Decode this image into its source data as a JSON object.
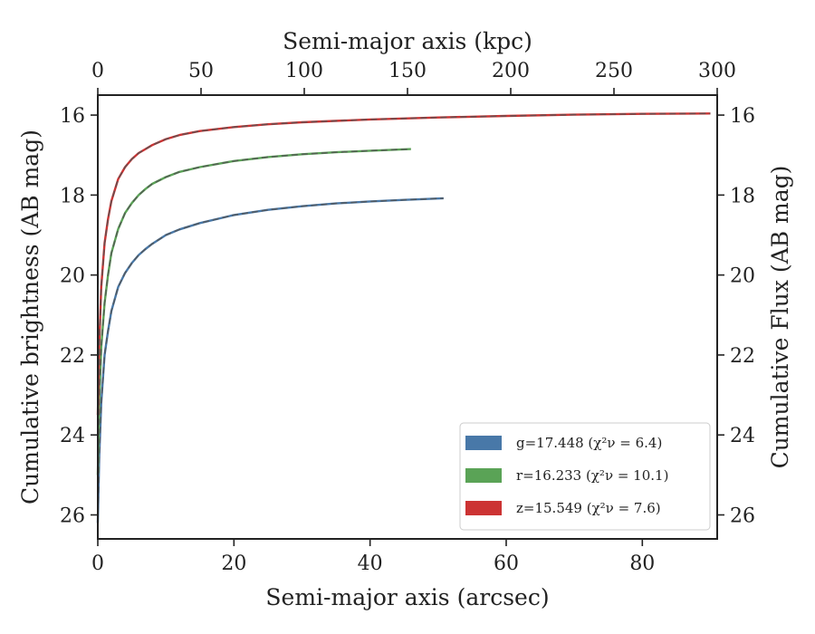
{
  "chart_data": {
    "type": "line",
    "title": "",
    "xlabel": "Semi-major axis (arcsec)",
    "xlabel_top": "Semi-major axis (kpc)",
    "ylabel": "Cumulative brightness (AB mag)",
    "ylabel_right": "Cumulative Flux (AB mag)",
    "xlim": [
      0,
      91
    ],
    "ylim": [
      26.6,
      15.5
    ],
    "y_inverted": true,
    "xlim_top": [
      0,
      300
    ],
    "x_ticks": [
      0,
      20,
      40,
      60,
      80
    ],
    "x_tick_labels": [
      "0",
      "20",
      "40",
      "60",
      "80"
    ],
    "x_top_ticks": [
      0,
      50,
      100,
      150,
      200,
      250,
      300
    ],
    "x_top_tick_labels": [
      "0",
      "50",
      "100",
      "150",
      "200",
      "250",
      "300"
    ],
    "y_ticks": [
      16,
      18,
      20,
      22,
      24,
      26
    ],
    "y_tick_labels": [
      "16",
      "18",
      "20",
      "22",
      "24",
      "26"
    ],
    "y_right_ticks": [
      16,
      18,
      20,
      22,
      24,
      26
    ],
    "y_right_tick_labels": [
      "16",
      "18",
      "20",
      "22",
      "24",
      "26"
    ],
    "grid": false,
    "legend_position": "lower-right",
    "series": [
      {
        "name": "g=17.448",
        "legend_label": "g=17.448",
        "legend_chi": "(χ²ν = 6.4)",
        "color": "#4878a8",
        "x": [
          0.0,
          0.2,
          0.5,
          1,
          1.5,
          2,
          3,
          4,
          5,
          6,
          7,
          8,
          10,
          12,
          15,
          20,
          25,
          30,
          35,
          40,
          45,
          50.8
        ],
        "y": [
          26.2,
          24.6,
          23.2,
          22.0,
          21.4,
          20.9,
          20.3,
          19.95,
          19.7,
          19.5,
          19.35,
          19.22,
          19.0,
          18.86,
          18.7,
          18.5,
          18.37,
          18.28,
          18.21,
          18.16,
          18.12,
          18.08
        ]
      },
      {
        "name": "r=16.233",
        "legend_label": "r=16.233",
        "legend_chi": "(χ²ν = 10.1)",
        "color": "#5aa356",
        "x": [
          0.0,
          0.2,
          0.5,
          1,
          1.5,
          2,
          3,
          4,
          5,
          6,
          7,
          8,
          10,
          12,
          15,
          20,
          25,
          30,
          35,
          40,
          46
        ],
        "y": [
          25.0,
          23.2,
          21.8,
          20.7,
          20.0,
          19.45,
          18.85,
          18.45,
          18.2,
          18.0,
          17.85,
          17.72,
          17.55,
          17.42,
          17.3,
          17.15,
          17.05,
          16.98,
          16.93,
          16.89,
          16.85
        ]
      },
      {
        "name": "z=15.549",
        "legend_label": "z=15.549",
        "legend_chi": "(χ²ν = 7.6)",
        "color": "#cc3333",
        "x": [
          0.0,
          0.2,
          0.5,
          1,
          1.5,
          2,
          3,
          4,
          5,
          6,
          7,
          8,
          10,
          12,
          15,
          20,
          25,
          30,
          40,
          50,
          60,
          70,
          80,
          90
        ],
        "y": [
          23.5,
          21.8,
          20.3,
          19.2,
          18.6,
          18.15,
          17.6,
          17.3,
          17.1,
          16.95,
          16.85,
          16.75,
          16.6,
          16.5,
          16.4,
          16.3,
          16.23,
          16.18,
          16.11,
          16.06,
          16.02,
          15.99,
          15.97,
          15.96
        ]
      }
    ]
  }
}
